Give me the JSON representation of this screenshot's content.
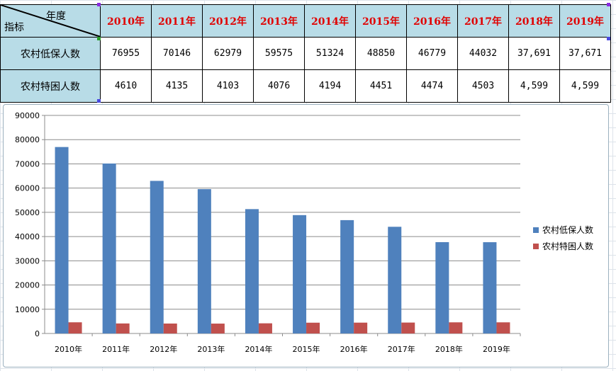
{
  "table": {
    "corner_year_label": "年度",
    "corner_indicator_label": "指标",
    "years": [
      "2010年",
      "2011年",
      "2012年",
      "2013年",
      "2014年",
      "2015年",
      "2016年",
      "2017年",
      "2018年",
      "2019年"
    ],
    "rows": [
      {
        "label": "农村低保人数",
        "cells": [
          "76955",
          "70146",
          "62979",
          "59575",
          "51324",
          "48850",
          "46779",
          "44032",
          "37,691",
          "37,671"
        ]
      },
      {
        "label": "农村特困人数",
        "cells": [
          "4610",
          "4135",
          "4103",
          "4076",
          "4194",
          "4451",
          "4474",
          "4503",
          "4,599",
          "4,599"
        ]
      }
    ]
  },
  "chart_data": {
    "type": "bar",
    "categories": [
      "2010年",
      "2011年",
      "2012年",
      "2013年",
      "2014年",
      "2015年",
      "2016年",
      "2017年",
      "2018年",
      "2019年"
    ],
    "series": [
      {
        "name": "农村低保人数",
        "values": [
          76955,
          70146,
          62979,
          59575,
          51324,
          48850,
          46779,
          44032,
          37691,
          37671
        ],
        "color": "#4f81bd"
      },
      {
        "name": "农村特困人数",
        "values": [
          4610,
          4135,
          4103,
          4076,
          4194,
          4451,
          4474,
          4503,
          4599,
          4599
        ],
        "color": "#c0504d"
      }
    ],
    "ylim": [
      0,
      90000
    ],
    "yticks": [
      0,
      10000,
      20000,
      30000,
      40000,
      50000,
      60000,
      70000,
      80000,
      90000
    ],
    "grid": true,
    "legend_position": "right"
  }
}
